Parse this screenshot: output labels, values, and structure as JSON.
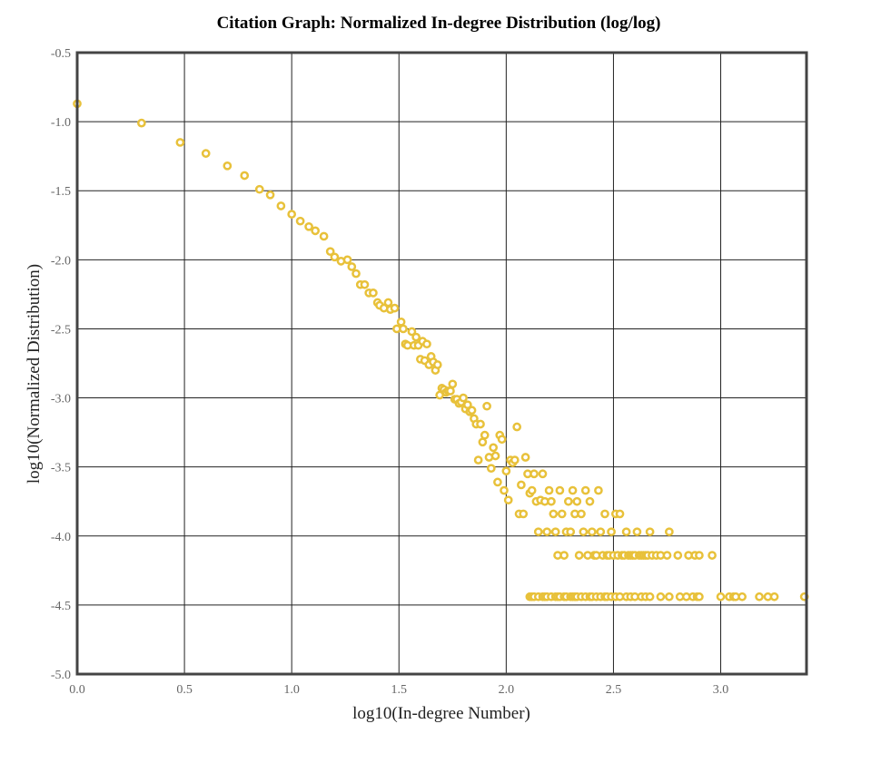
{
  "chart_data": {
    "type": "scatter",
    "title": "Citation Graph: Normalized In-degree Distribution (log/log)",
    "xlabel": "log10(In-degree Number)",
    "ylabel": "log10(Normalized Distribution)",
    "xlim": [
      0.0,
      3.4
    ],
    "ylim": [
      -5.0,
      -0.5
    ],
    "x_ticks": [
      "0.0",
      "0.5",
      "1.0",
      "1.5",
      "2.0",
      "2.5",
      "3.0"
    ],
    "y_ticks": [
      "-0.5",
      "-1.0",
      "-1.5",
      "-2.0",
      "-2.5",
      "-3.0",
      "-3.5",
      "-4.0",
      "-4.5",
      "-5.0"
    ],
    "grid": true,
    "legend": "none",
    "colors": {
      "point": "#e8c13a",
      "grid": "#222222",
      "frame": "#444444"
    },
    "points": [
      [
        0.0,
        -0.87
      ],
      [
        0.3,
        -1.01
      ],
      [
        0.48,
        -1.15
      ],
      [
        0.6,
        -1.23
      ],
      [
        0.7,
        -1.32
      ],
      [
        0.78,
        -1.39
      ],
      [
        0.85,
        -1.49
      ],
      [
        0.9,
        -1.53
      ],
      [
        0.95,
        -1.61
      ],
      [
        1.0,
        -1.67
      ],
      [
        1.04,
        -1.72
      ],
      [
        1.08,
        -1.76
      ],
      [
        1.11,
        -1.79
      ],
      [
        1.15,
        -1.83
      ],
      [
        1.18,
        -1.94
      ],
      [
        1.2,
        -1.98
      ],
      [
        1.23,
        -2.01
      ],
      [
        1.26,
        -2.0
      ],
      [
        1.28,
        -2.05
      ],
      [
        1.3,
        -2.1
      ],
      [
        1.32,
        -2.18
      ],
      [
        1.34,
        -2.18
      ],
      [
        1.36,
        -2.24
      ],
      [
        1.38,
        -2.24
      ],
      [
        1.4,
        -2.31
      ],
      [
        1.41,
        -2.33
      ],
      [
        1.43,
        -2.35
      ],
      [
        1.45,
        -2.31
      ],
      [
        1.46,
        -2.36
      ],
      [
        1.48,
        -2.35
      ],
      [
        1.49,
        -2.5
      ],
      [
        1.51,
        -2.45
      ],
      [
        1.52,
        -2.5
      ],
      [
        1.53,
        -2.61
      ],
      [
        1.54,
        -2.62
      ],
      [
        1.56,
        -2.52
      ],
      [
        1.57,
        -2.62
      ],
      [
        1.58,
        -2.56
      ],
      [
        1.59,
        -2.62
      ],
      [
        1.6,
        -2.72
      ],
      [
        1.61,
        -2.59
      ],
      [
        1.62,
        -2.73
      ],
      [
        1.63,
        -2.61
      ],
      [
        1.64,
        -2.76
      ],
      [
        1.65,
        -2.7
      ],
      [
        1.66,
        -2.74
      ],
      [
        1.67,
        -2.8
      ],
      [
        1.68,
        -2.76
      ],
      [
        1.69,
        -2.98
      ],
      [
        1.7,
        -2.93
      ],
      [
        1.71,
        -2.94
      ],
      [
        1.72,
        -2.96
      ],
      [
        1.73,
        -2.95
      ],
      [
        1.74,
        -2.95
      ],
      [
        1.75,
        -2.9
      ],
      [
        1.76,
        -3.01
      ],
      [
        1.77,
        -3.01
      ],
      [
        1.78,
        -3.04
      ],
      [
        1.79,
        -3.03
      ],
      [
        1.8,
        -3.0
      ],
      [
        1.81,
        -3.08
      ],
      [
        1.82,
        -3.05
      ],
      [
        1.83,
        -3.1
      ],
      [
        1.84,
        -3.09
      ],
      [
        1.85,
        -3.15
      ],
      [
        1.86,
        -3.19
      ],
      [
        1.87,
        -3.45
      ],
      [
        1.88,
        -3.19
      ],
      [
        1.89,
        -3.32
      ],
      [
        1.9,
        -3.27
      ],
      [
        1.91,
        -3.06
      ],
      [
        1.92,
        -3.43
      ],
      [
        1.93,
        -3.51
      ],
      [
        1.94,
        -3.36
      ],
      [
        1.95,
        -3.42
      ],
      [
        1.96,
        -3.61
      ],
      [
        1.97,
        -3.27
      ],
      [
        1.98,
        -3.3
      ],
      [
        1.99,
        -3.67
      ],
      [
        2.0,
        -3.53
      ],
      [
        2.01,
        -3.74
      ],
      [
        2.02,
        -3.45
      ],
      [
        2.03,
        -3.47
      ],
      [
        2.04,
        -3.45
      ],
      [
        2.05,
        -3.21
      ],
      [
        2.06,
        -3.84
      ],
      [
        2.07,
        -3.63
      ],
      [
        2.08,
        -3.84
      ],
      [
        2.09,
        -3.43
      ],
      [
        2.1,
        -3.55
      ],
      [
        2.11,
        -3.69
      ],
      [
        2.12,
        -3.67
      ],
      [
        2.13,
        -3.55
      ],
      [
        2.14,
        -3.75
      ],
      [
        2.15,
        -3.97
      ],
      [
        2.16,
        -3.74
      ],
      [
        2.17,
        -3.55
      ],
      [
        2.18,
        -3.75
      ],
      [
        2.19,
        -3.97
      ],
      [
        2.2,
        -3.67
      ],
      [
        2.21,
        -3.75
      ],
      [
        2.22,
        -3.84
      ],
      [
        2.23,
        -3.97
      ],
      [
        2.24,
        -4.14
      ],
      [
        2.25,
        -3.67
      ],
      [
        2.26,
        -3.84
      ],
      [
        2.27,
        -4.14
      ],
      [
        2.28,
        -3.97
      ],
      [
        2.29,
        -3.75
      ],
      [
        2.3,
        -3.97
      ],
      [
        2.31,
        -3.67
      ],
      [
        2.32,
        -3.84
      ],
      [
        2.33,
        -3.75
      ],
      [
        2.34,
        -4.14
      ],
      [
        2.35,
        -3.84
      ],
      [
        2.36,
        -3.97
      ],
      [
        2.37,
        -3.67
      ],
      [
        2.38,
        -4.14
      ],
      [
        2.39,
        -3.75
      ],
      [
        2.4,
        -3.97
      ],
      [
        2.41,
        -4.14
      ],
      [
        2.42,
        -4.14
      ],
      [
        2.43,
        -3.67
      ],
      [
        2.44,
        -3.97
      ],
      [
        2.45,
        -4.14
      ],
      [
        2.46,
        -3.84
      ],
      [
        2.47,
        -4.14
      ],
      [
        2.48,
        -4.14
      ],
      [
        2.49,
        -3.97
      ],
      [
        2.5,
        -4.14
      ],
      [
        2.51,
        -3.84
      ],
      [
        2.52,
        -4.14
      ],
      [
        2.53,
        -3.84
      ],
      [
        2.54,
        -4.14
      ],
      [
        2.55,
        -4.14
      ],
      [
        2.56,
        -3.97
      ],
      [
        2.57,
        -4.14
      ],
      [
        2.58,
        -4.14
      ],
      [
        2.59,
        -4.14
      ],
      [
        2.6,
        -4.14
      ],
      [
        2.61,
        -3.97
      ],
      [
        2.62,
        -4.14
      ],
      [
        2.63,
        -4.14
      ],
      [
        2.64,
        -4.14
      ],
      [
        2.65,
        -4.14
      ],
      [
        2.66,
        -4.14
      ],
      [
        2.67,
        -3.97
      ],
      [
        2.68,
        -4.14
      ],
      [
        2.7,
        -4.14
      ],
      [
        2.72,
        -4.14
      ],
      [
        2.75,
        -4.14
      ],
      [
        2.76,
        -3.97
      ],
      [
        2.8,
        -4.14
      ],
      [
        2.85,
        -4.14
      ],
      [
        2.88,
        -4.14
      ],
      [
        2.9,
        -4.14
      ],
      [
        2.96,
        -4.14
      ],
      [
        2.11,
        -4.44
      ],
      [
        2.12,
        -4.44
      ],
      [
        2.13,
        -4.44
      ],
      [
        2.15,
        -4.44
      ],
      [
        2.17,
        -4.44
      ],
      [
        2.18,
        -4.44
      ],
      [
        2.19,
        -4.44
      ],
      [
        2.21,
        -4.44
      ],
      [
        2.23,
        -4.44
      ],
      [
        2.24,
        -4.44
      ],
      [
        2.25,
        -4.44
      ],
      [
        2.27,
        -4.44
      ],
      [
        2.28,
        -4.44
      ],
      [
        2.3,
        -4.44
      ],
      [
        2.31,
        -4.44
      ],
      [
        2.32,
        -4.44
      ],
      [
        2.33,
        -4.44
      ],
      [
        2.35,
        -4.44
      ],
      [
        2.37,
        -4.44
      ],
      [
        2.39,
        -4.44
      ],
      [
        2.4,
        -4.44
      ],
      [
        2.42,
        -4.44
      ],
      [
        2.44,
        -4.44
      ],
      [
        2.46,
        -4.44
      ],
      [
        2.47,
        -4.44
      ],
      [
        2.49,
        -4.44
      ],
      [
        2.51,
        -4.44
      ],
      [
        2.53,
        -4.44
      ],
      [
        2.56,
        -4.44
      ],
      [
        2.58,
        -4.44
      ],
      [
        2.6,
        -4.44
      ],
      [
        2.63,
        -4.44
      ],
      [
        2.65,
        -4.44
      ],
      [
        2.67,
        -4.44
      ],
      [
        2.72,
        -4.44
      ],
      [
        2.76,
        -4.44
      ],
      [
        2.81,
        -4.44
      ],
      [
        2.84,
        -4.44
      ],
      [
        2.87,
        -4.44
      ],
      [
        2.89,
        -4.44
      ],
      [
        2.9,
        -4.44
      ],
      [
        3.0,
        -4.44
      ],
      [
        3.04,
        -4.44
      ],
      [
        3.06,
        -4.44
      ],
      [
        3.07,
        -4.44
      ],
      [
        3.1,
        -4.44
      ],
      [
        3.18,
        -4.44
      ],
      [
        3.22,
        -4.44
      ],
      [
        3.25,
        -4.44
      ],
      [
        3.39,
        -4.44
      ]
    ]
  }
}
